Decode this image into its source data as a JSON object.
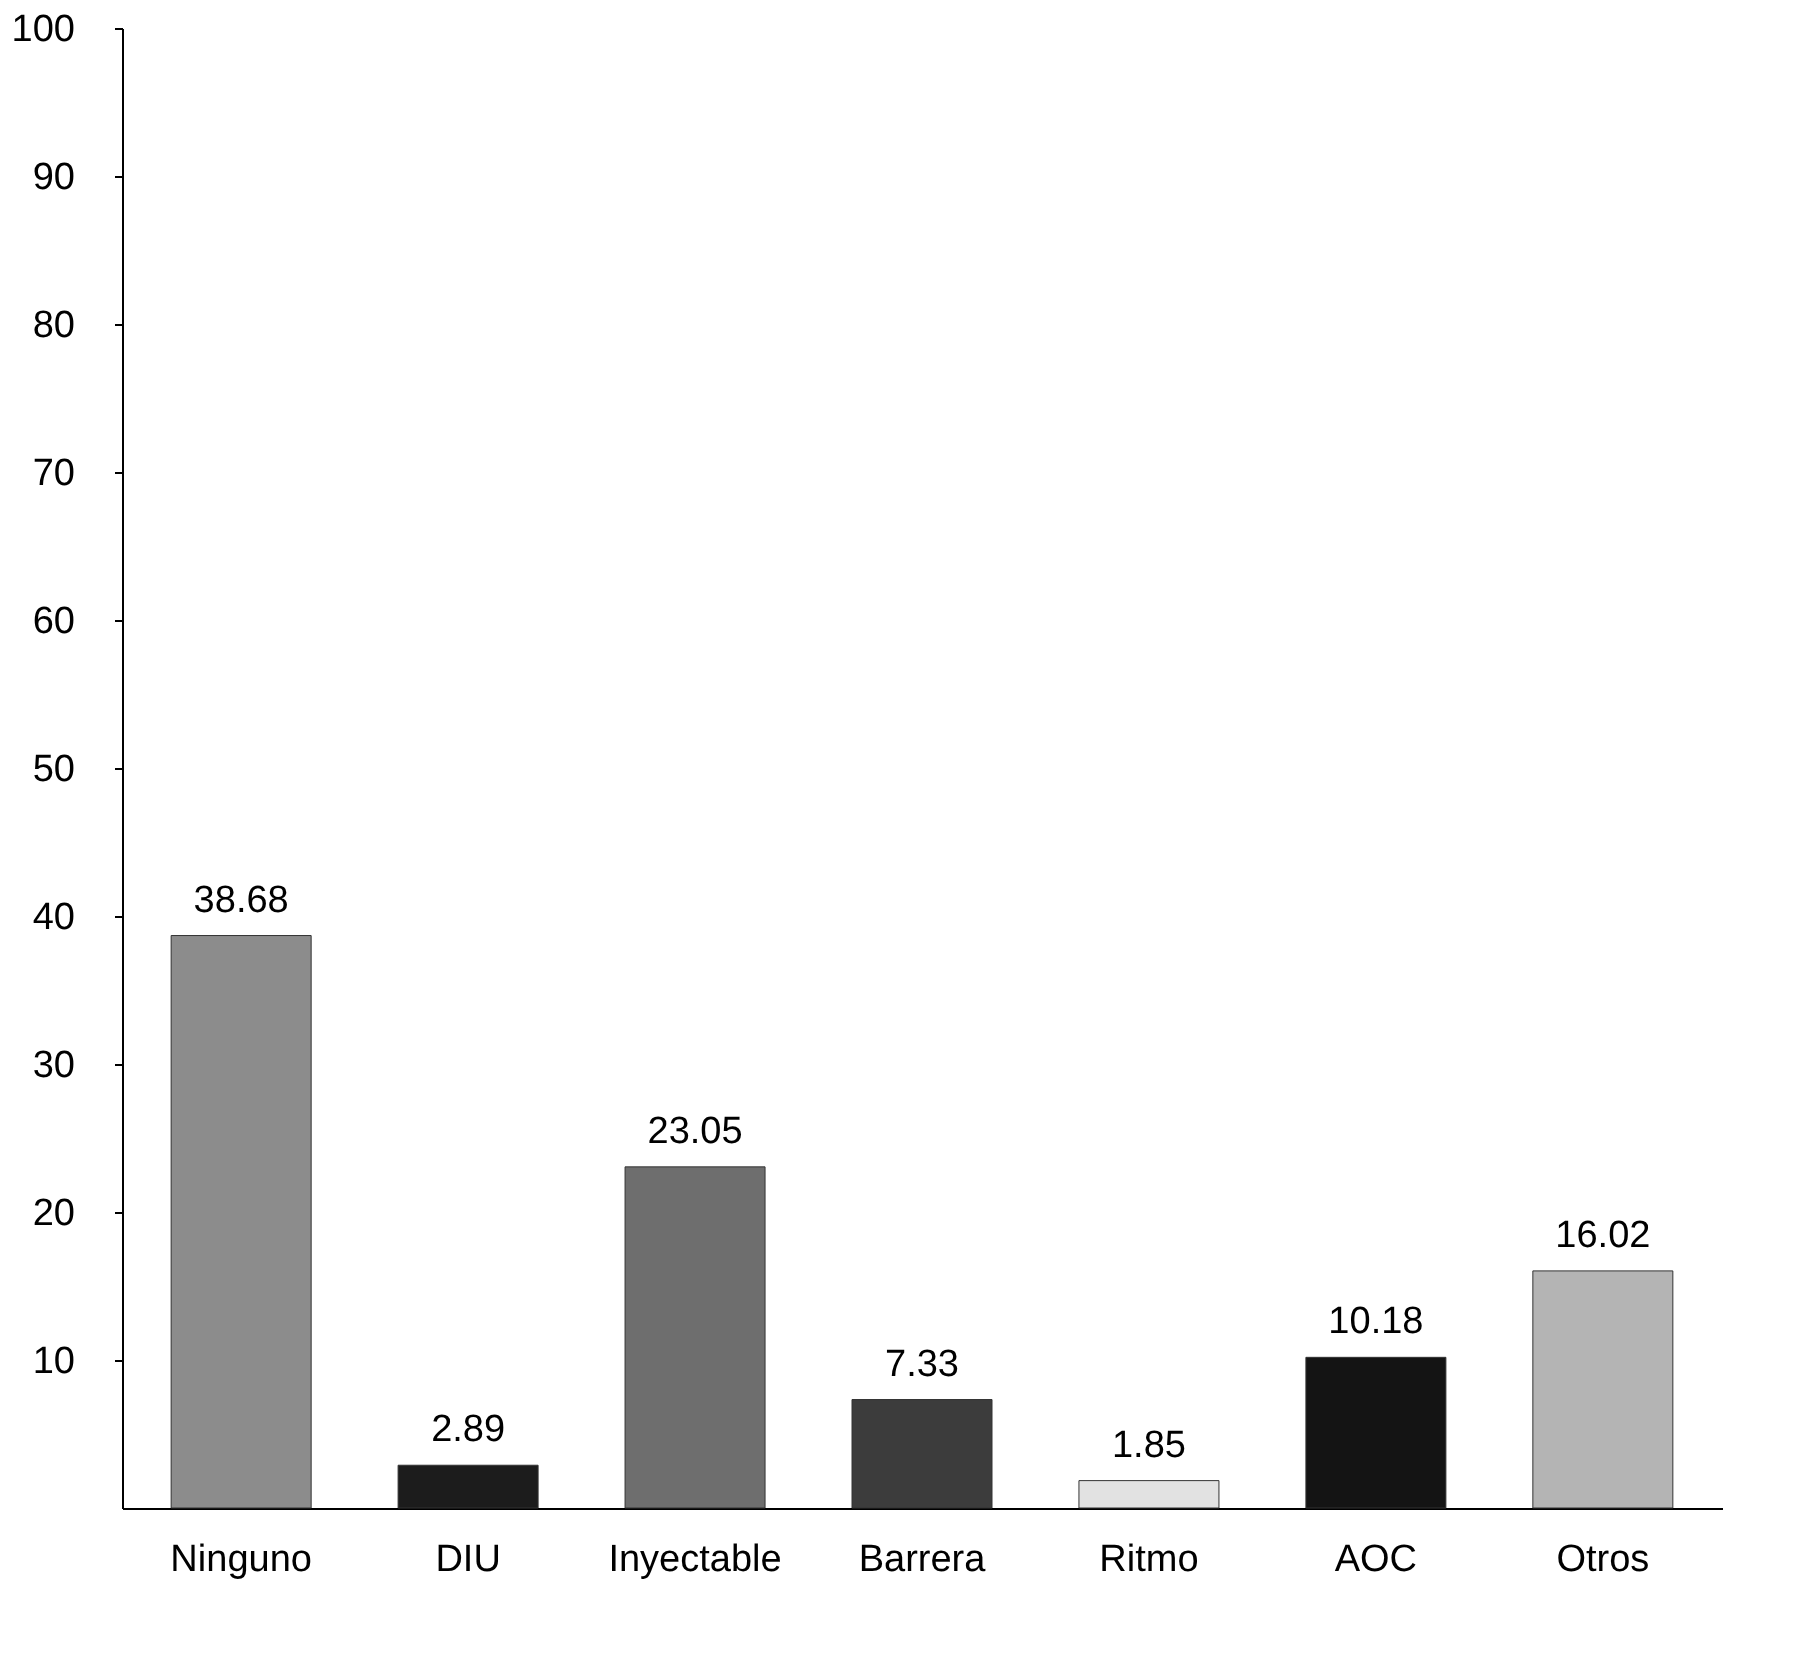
{
  "chart_data": {
    "type": "bar",
    "categories": [
      "Ninguno",
      "DIU",
      "Inyectable",
      "Barrera",
      "Ritmo",
      "AOC",
      "Otros"
    ],
    "values": [
      38.68,
      2.89,
      23.05,
      7.33,
      1.85,
      10.18,
      16.02
    ],
    "colors": [
      "#8c8c8c",
      "#1c1c1c",
      "#6e6e6e",
      "#3c3c3c",
      "#e2e2e2",
      "#141414",
      "#b4b4b4"
    ],
    "ylim": [
      0,
      100
    ],
    "yticks": [
      10,
      20,
      30,
      40,
      50,
      60,
      70,
      80,
      90,
      100
    ],
    "grid": false,
    "data_labels": true
  }
}
